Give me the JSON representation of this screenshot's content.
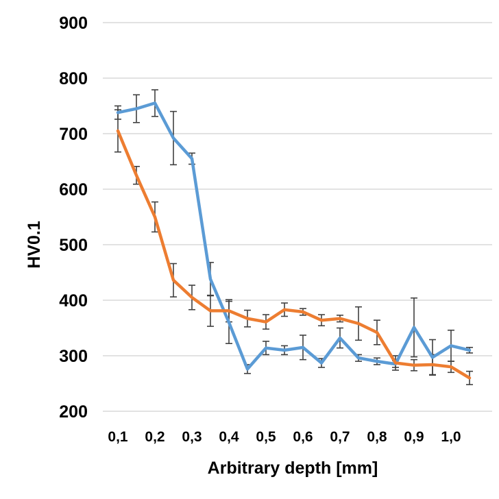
{
  "chart_data": {
    "type": "line",
    "title": "",
    "xlabel": "Arbitrary depth [mm]",
    "ylabel": "HV0.1",
    "ylim": [
      200,
      900
    ],
    "yticks": [
      200,
      300,
      400,
      500,
      600,
      700,
      800,
      900
    ],
    "xlim": [
      0.1,
      1.05
    ],
    "xticks": [
      0.1,
      0.2,
      0.3,
      0.4,
      0.5,
      0.6,
      0.7,
      0.8,
      0.9,
      1.0
    ],
    "xtick_labels": [
      "0,1",
      "0,2",
      "0,3",
      "0,4",
      "0,5",
      "0,6",
      "0,7",
      "0,8",
      "0,9",
      "1,0"
    ],
    "grid": "horizontal",
    "legend": "none",
    "x": [
      0.1,
      0.15,
      0.2,
      0.25,
      0.3,
      0.35,
      0.4,
      0.45,
      0.5,
      0.55,
      0.6,
      0.65,
      0.7,
      0.75,
      0.8,
      0.85,
      0.9,
      0.95,
      1.0,
      1.05
    ],
    "series": [
      {
        "color": "#5B9BD5",
        "values": [
          738,
          745,
          755,
          692,
          655,
          438,
          360,
          276,
          314,
          310,
          315,
          287,
          332,
          296,
          290,
          285,
          351,
          297,
          318,
          310
        ],
        "errors": [
          12,
          25,
          24,
          48,
          10,
          30,
          38,
          8,
          12,
          8,
          22,
          8,
          18,
          6,
          6,
          6,
          53,
          32,
          28,
          5
        ]
      },
      {
        "color": "#ED7D31",
        "values": [
          705,
          625,
          550,
          436,
          405,
          381,
          381,
          367,
          361,
          383,
          379,
          364,
          367,
          358,
          342,
          287,
          283,
          284,
          280,
          260
        ],
        "errors": [
          38,
          16,
          27,
          30,
          22,
          28,
          20,
          15,
          13,
          12,
          6,
          10,
          6,
          30,
          22,
          13,
          10,
          18,
          10,
          12
        ]
      }
    ]
  }
}
